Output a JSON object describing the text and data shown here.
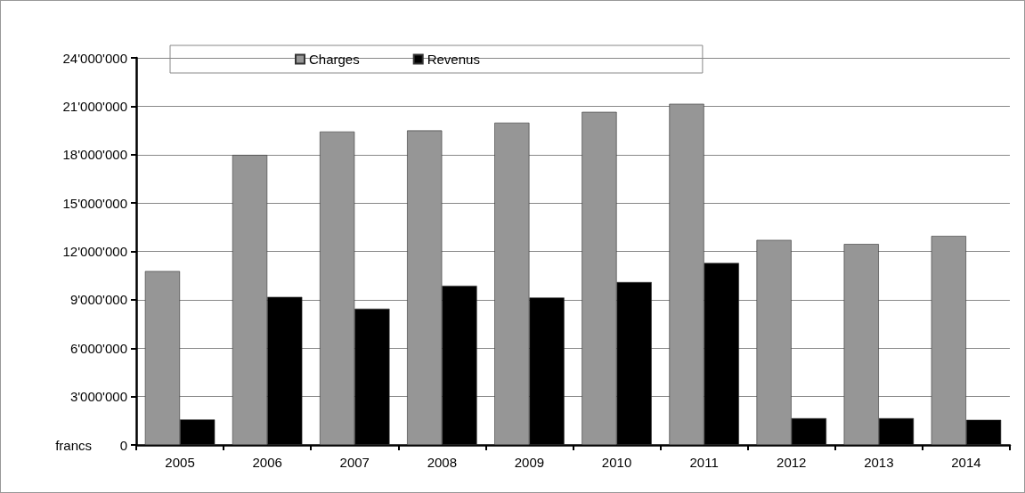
{
  "chart_data": {
    "type": "bar",
    "ylabel": "francs",
    "categories": [
      "2005",
      "2006",
      "2007",
      "2008",
      "2009",
      "2010",
      "2011",
      "2012",
      "2013",
      "2014"
    ],
    "series": [
      {
        "name": "Charges",
        "color": "#969696",
        "values": [
          10780000,
          17980000,
          19430000,
          19500000,
          19980000,
          20650000,
          21150000,
          12710000,
          12460000,
          12960000
        ]
      },
      {
        "name": "Revenus",
        "color": "#000000",
        "values": [
          1580000,
          9180000,
          8450000,
          9870000,
          9140000,
          10100000,
          11280000,
          1660000,
          1660000,
          1560000
        ]
      }
    ],
    "ylim": [
      0,
      24000000
    ],
    "yticks": [
      0,
      {
        "value": 3000000,
        "label": "3'000'000"
      },
      {
        "value": 6000000,
        "label": "6'000'000"
      },
      {
        "value": 9000000,
        "label": "9'000'000"
      },
      {
        "value": 12000000,
        "label": "12'000'000"
      },
      {
        "value": 15000000,
        "label": "15'000'000"
      },
      {
        "value": 18000000,
        "label": "18'000'000"
      },
      {
        "value": 21000000,
        "label": "21'000'000"
      },
      {
        "value": 24000000,
        "label": "24'000'000"
      }
    ],
    "grid": "y",
    "legend": "top"
  }
}
